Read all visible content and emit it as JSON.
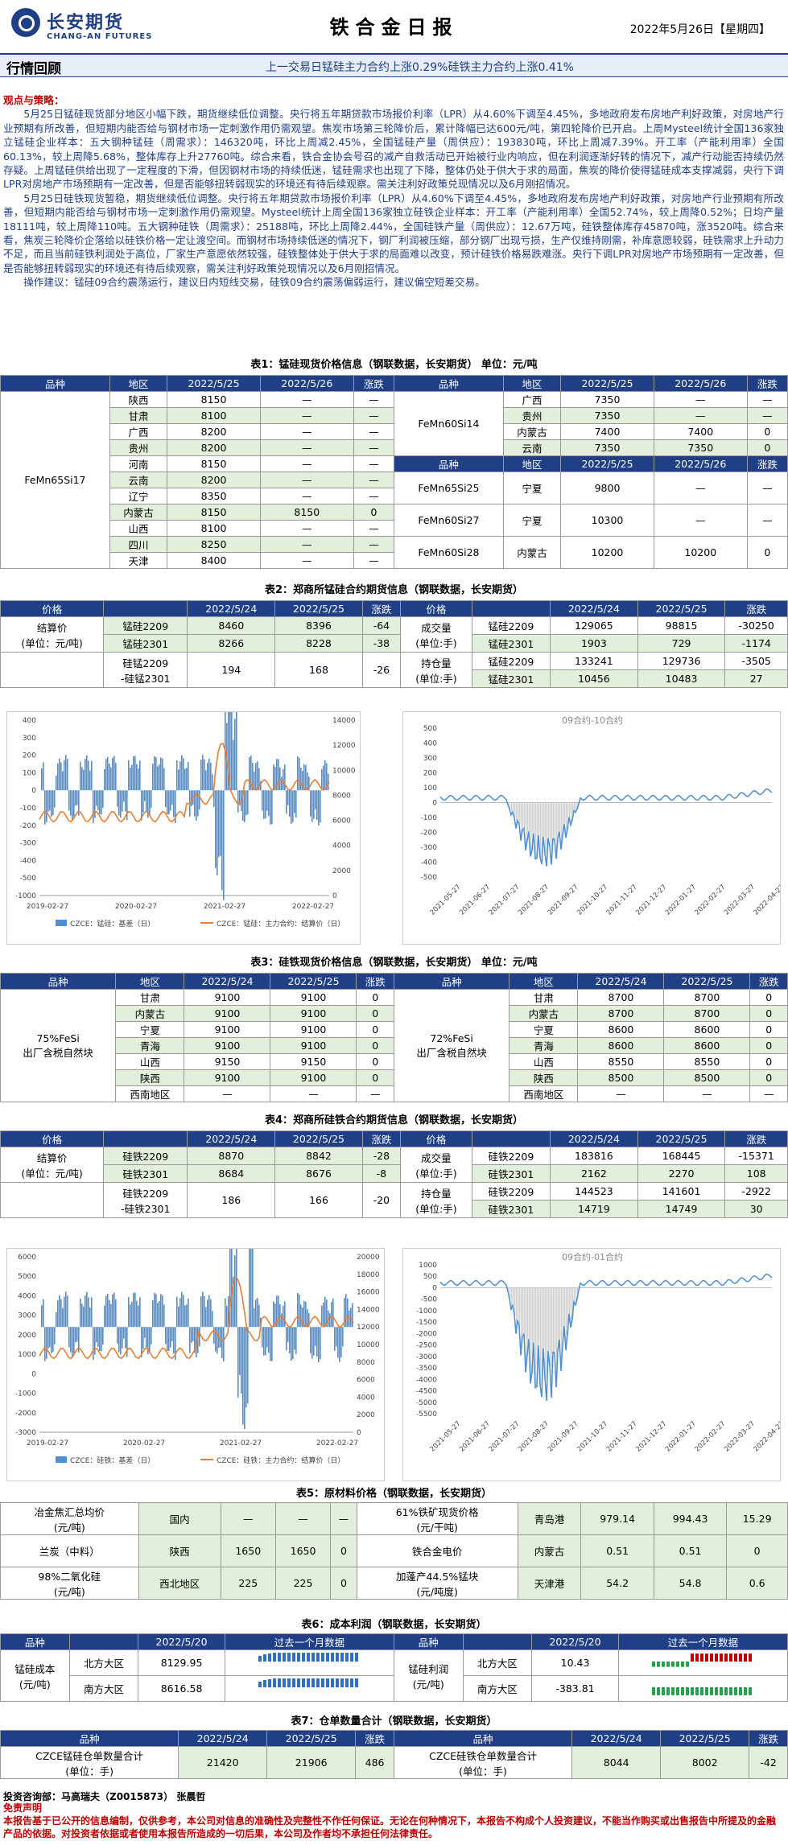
{
  "header": {
    "brand": "长安期货",
    "brand_en": "CHANG-AN FUTURES",
    "title": "铁合金日报",
    "date": "2022年5月26日【星期四】"
  },
  "band": {
    "label": "行情回顾",
    "summary": "上一交易日锰硅主力合约上涨0.29%硅铁主力合约上涨0.41%"
  },
  "views": {
    "heading": "观点与策略：",
    "p1": "5月25日锰硅现货部分地区小幅下跌，期货继续低位调整。央行将五年期贷款市场报价利率（LPR）从4.60%下调至4.45%，多地政府发布房地产利好政策，对房地产行业预期有所改善，但短期内能否给与钢材市场一定刺激作用仍需观望。焦炭市场第三轮降价后，累计降幅已达600元/吨，第四轮降价已开启。上周Mysteel统计全国136家独立锰硅企业样本：五大钢种锰硅（周需求）：146320吨，环比上周减2.45%，全国锰硅产量（周供应）：193830吨，环比上周减7.39%。开工率（产能利用率）全国60.13%，较上周降5.68%，整体库存上升27760吨。综合来看，铁合金协会号召的减产自救活动已开始被行业内响应，但在利润逐渐好转的情况下，减产行动能否持续仍然存疑。上周锰硅供给出现了一定程度的下滑，但因钢材市场的持续低迷，锰硅需求也出现了下降，整体仍处于供大于求的局面，焦炭的降价使得锰硅成本支撑减弱，央行下调LPR对房地产市场预期有一定改善，但是否能够扭转弱现实的环境还有待后续观察。需关注利好政策兑现情况以及6月刚招情况。",
    "p2": "5月25日硅铁现货暂稳，期货继续低位调整。央行将五年期贷款市场报价利率（LPR）从4.60%下调至4.45%，多地政府发布房地产利好政策，对房地产行业预期有所改善，但短期内能否给与钢材市场一定刺激作用仍需观望。Mysteel统计上周全国136家独立硅铁企业样本：开工率（产能利用率）全国52.74%，较上周降0.52%；日均产量18111吨，较上周降110吨。五大钢种硅铁（周需求）：25188吨，环比上周降2.44%，全国硅铁产量（周供应）：12.67万吨，硅铁整体库存45870吨，涨3520吨。综合来看，焦炭三轮降价企落给以硅铁价格一定让渡空间。而钢材市场持续低迷的情况下，钢厂利润被压缩，部分钢厂出现亏损，生产仅维持刚需，补库意愿较弱，硅铁需求上升动力不足，而且当前硅铁利润处于高位，厂家生产意愿依然较强，硅铁整体处于供大于求的局面难以改变，预计硅铁价格易跌难涨。央行下调LPR对房地产市场预期有一定改善，但是否能够扭转弱现实的环境还有待后续观察，需关注利好政策兑现情况以及6月刚招情况。",
    "p3": "操作建议：锰硅09合约震荡运行，建议日内短线交易，硅铁09合约震荡偏弱运行，建议偏空短差交易。"
  },
  "t1": {
    "title": "表1：锰硅现货价格信息（钢联数据，长安期货） 单位：元/吨",
    "headers": [
      "品种",
      "地区",
      "2022/5/25",
      "2022/5/26",
      "涨跌",
      "品种",
      "地区",
      "2022/5/25",
      "2022/5/26",
      "涨跌"
    ],
    "left_name": "FeMn65Si17",
    "left_rows": [
      [
        "陕西",
        "8150",
        "—",
        "—"
      ],
      [
        "甘肃",
        "8100",
        "—",
        "—"
      ],
      [
        "广西",
        "8200",
        "—",
        "—"
      ],
      [
        "贵州",
        "8200",
        "—",
        "—"
      ],
      [
        "河南",
        "8150",
        "—",
        "—"
      ],
      [
        "云南",
        "8200",
        "—",
        "—"
      ],
      [
        "辽宁",
        "8350",
        "—",
        "—"
      ],
      [
        "内蒙古",
        "8150",
        "8150",
        "0"
      ],
      [
        "山西",
        "8100",
        "—",
        "—"
      ],
      [
        "四川",
        "8250",
        "—",
        "—"
      ],
      [
        "天津",
        "8400",
        "—",
        "—"
      ]
    ],
    "r_name1": "FeMn60Si14",
    "r_rows1": [
      [
        "广西",
        "7350",
        "—",
        "—"
      ],
      [
        "贵州",
        "7350",
        "—",
        "—"
      ],
      [
        "内蒙古",
        "7400",
        "7400",
        "0"
      ],
      [
        "云南",
        "7350",
        "7350",
        "0"
      ]
    ],
    "r_rows2": [
      [
        "FeMn65Si25",
        "宁夏",
        "9800",
        "—",
        "—"
      ],
      [
        "FeMn60Si27",
        "宁夏",
        "10300",
        "—",
        "—"
      ],
      [
        "FeMn60Si28",
        "内蒙古",
        "10200",
        "10200",
        "0"
      ]
    ]
  },
  "t2": {
    "title": "表2：郑商所锰硅合约期货信息（钢联数据，长安期货）",
    "headers": [
      "价格",
      "",
      "2022/5/24",
      "2022/5/25",
      "涨跌",
      "价格",
      "",
      "2022/5/24",
      "2022/5/25",
      "涨跌"
    ],
    "left_label": "结算价",
    "left_unit": "(单位：元/吨)",
    "left_rows": [
      [
        "锰硅2209",
        "8460",
        "8396",
        "-64"
      ],
      [
        "锰硅2301",
        "8266",
        "8228",
        "-38"
      ],
      [
        "硅锰2209",
        "194",
        "168",
        "-26"
      ]
    ],
    "spread_l2": "-硅锰2301",
    "r1_label": "成交量",
    "r2_label": "持仓量",
    "r_unit": "(单位:手)",
    "right_rows": [
      [
        "锰硅2209",
        "129065",
        "98815",
        "-30250"
      ],
      [
        "锰硅2301",
        "1903",
        "729",
        "-1174"
      ],
      [
        "锰硅2209",
        "133241",
        "129736",
        "-3505"
      ],
      [
        "锰硅2301",
        "10456",
        "10483",
        "27"
      ]
    ]
  },
  "c1": {
    "legend1": "CZCE：锰硅：基差（日）",
    "legend2": "CZCE：锰硅：主力合约：结算价（日）",
    "xt": [
      "2019-02-27",
      "2020-02-27",
      "2021-02-27",
      "2022-02-27"
    ],
    "yl": [
      "400",
      "300",
      "200",
      "100",
      "0",
      "-100",
      "-200",
      "-300",
      "-400",
      "-500",
      "-1000"
    ],
    "yr": [
      "14000",
      "12000",
      "10000",
      "8000",
      "6000",
      "4000",
      "2000",
      "0"
    ]
  },
  "c2": {
    "title": "09合约-10合约",
    "yl": [
      "500",
      "400",
      "300",
      "200",
      "100",
      "0",
      "-100",
      "-200",
      "-300",
      "-400",
      "-500"
    ],
    "xt": [
      "2021-05-27",
      "2021-06-27",
      "2021-07-27",
      "2021-08-27",
      "2021-09-27",
      "2021-10-27",
      "2021-11-27",
      "2021-12-27",
      "2022-01-27",
      "2022-02-27",
      "2022-03-27",
      "2022-04-27"
    ]
  },
  "t3": {
    "title": "表3：硅铁现货价格信息（钢联数据，长安期货） 单位：元/吨",
    "headers": [
      "品种",
      "地区",
      "2022/5/24",
      "2022/5/25",
      "涨跌",
      "品种",
      "地区",
      "2022/5/24",
      "2022/5/25",
      "涨跌"
    ],
    "left_name": "75%FeSi",
    "left_sub": "出厂含税自然块",
    "right_name": "72%FeSi",
    "right_sub": "出厂含税自然块",
    "left_rows": [
      [
        "甘肃",
        "9100",
        "9100",
        "0"
      ],
      [
        "内蒙古",
        "9100",
        "9100",
        "0"
      ],
      [
        "宁夏",
        "9100",
        "9100",
        "0"
      ],
      [
        "青海",
        "9100",
        "9100",
        "0"
      ],
      [
        "山西",
        "9150",
        "9150",
        "0"
      ],
      [
        "陕西",
        "9100",
        "9100",
        "0"
      ],
      [
        "西南地区",
        "—",
        "—",
        "—"
      ]
    ],
    "right_rows": [
      [
        "甘肃",
        "8700",
        "8700",
        "0"
      ],
      [
        "内蒙古",
        "8700",
        "8700",
        "0"
      ],
      [
        "宁夏",
        "8600",
        "8600",
        "0"
      ],
      [
        "青海",
        "8600",
        "8600",
        "0"
      ],
      [
        "山西",
        "8550",
        "8550",
        "0"
      ],
      [
        "陕西",
        "8500",
        "8500",
        "0"
      ],
      [
        "西南地区",
        "—",
        "—",
        "—"
      ]
    ]
  },
  "t4": {
    "title": "表4：郑商所硅铁合约期货信息（钢联数据，长安期货）",
    "headers": [
      "价格",
      "",
      "2022/5/24",
      "2022/5/25",
      "涨跌",
      "价格",
      "",
      "2022/5/24",
      "2022/5/25",
      "涨跌"
    ],
    "left_label": "结算价",
    "left_unit": "(单位：元/吨)",
    "left_rows": [
      [
        "硅铁2209",
        "8870",
        "8842",
        "-28"
      ],
      [
        "硅铁2301",
        "8684",
        "8676",
        "-8"
      ],
      [
        "硅铁2209",
        "186",
        "166",
        "-20"
      ]
    ],
    "spread_l2": "-硅铁2301",
    "r1_label": "成交量",
    "r2_label": "持仓量",
    "r_unit": "(单位:手)",
    "right_rows": [
      [
        "硅铁2209",
        "183816",
        "168445",
        "-15371"
      ],
      [
        "硅铁2301",
        "2162",
        "2270",
        "108"
      ],
      [
        "硅铁2209",
        "144523",
        "141601",
        "-2922"
      ],
      [
        "硅铁2301",
        "14719",
        "14749",
        "30"
      ]
    ]
  },
  "c3": {
    "legend1": "CZCE：硅铁：基差（日）",
    "legend2": "CZCE：硅铁：主力合约：结算价（日）",
    "xt": [
      "2019-02-27",
      "2020-02-27",
      "2021-02-27",
      "2022-02-27"
    ],
    "yl": [
      "6000",
      "5000",
      "4000",
      "3000",
      "2000",
      "1000",
      "0",
      "-1000",
      "-2000",
      "-3000"
    ],
    "yr": [
      "20000",
      "18000",
      "16000",
      "14000",
      "12000",
      "10000",
      "8000",
      "6000",
      "4000",
      "2000",
      "0"
    ]
  },
  "c4": {
    "title": "09合约-01合约",
    "yl": [
      "1000",
      "500",
      "0",
      "-500",
      "-1000",
      "-1500",
      "-2000",
      "-2500",
      "-3000",
      "-3500",
      "-4000",
      "-4500",
      "-5000",
      "-5500"
    ],
    "xt": [
      "2021-05-27",
      "2021-06-27",
      "2021-07-27",
      "2021-08-27",
      "2021-09-27",
      "2021-10-27",
      "2021-11-27",
      "2021-12-27",
      "2022-01-27",
      "2022-02-27",
      "2022-03-27",
      "2022-04-27"
    ]
  },
  "t5": {
    "title": "表5：原材料价格（钢联数据，长安期货）",
    "rows": [
      [
        "冶金焦汇总均价",
        "(元/吨)",
        "国内",
        "—",
        "—",
        "—",
        "61%铁矿现货价格",
        "(元/干吨)",
        "青岛港",
        "979.14",
        "994.43",
        "15.29"
      ],
      [
        "兰炭（中料）",
        "",
        "陕西",
        "1650",
        "1650",
        "0",
        "铁合金电价",
        "",
        "内蒙古",
        "0.51",
        "0.51",
        "0"
      ],
      [
        "98%二氧化硅",
        "(元/吨)",
        "西北地区",
        "225",
        "225",
        "0",
        "加蓬产44.5%锰块",
        "(元/吨度)",
        "天津港",
        "54.2",
        "54.8",
        "0.6"
      ]
    ]
  },
  "t6": {
    "title": "表6：成本利润（钢联数据，长安期货）",
    "headers": [
      "品种",
      "",
      "2022/5/20",
      "过去一个月数据",
      "品种",
      "",
      "2022/5/20",
      "过去一个月数据"
    ],
    "l_name": "锰硅成本",
    "l_unit": "(元/吨)",
    "r_name": "锰硅利润",
    "r_unit": "(元/吨)",
    "rows": [
      [
        "北方大区",
        "8129.95",
        "北方大区",
        "10.43"
      ],
      [
        "南方大区",
        "8616.58",
        "南方大区",
        "-383.81"
      ]
    ]
  },
  "t7": {
    "title": "表7：仓单数量合计（钢联数据，长安期货）",
    "headers": [
      "品种",
      "2022/5/24",
      "2022/5/25",
      "涨跌",
      "品种",
      "2022/5/24",
      "2022/5/25",
      "涨跌"
    ],
    "row": [
      "CZCE锰硅仓单数量合计",
      "(单位：手)",
      "21420",
      "21906",
      "486",
      "CZCE硅铁仓单数量合计",
      "(单位：手)",
      "8044",
      "8002",
      "-42"
    ]
  },
  "foot": {
    "inv": "投资咨询部：马高瑞夫（Z0015873） 张晨哲",
    "disc_h": "免责声明",
    "disc": "本报告基于已公开的信息编制，仅供参考，本公司对信息的准确性及完整性不作任何保证。无论在何种情况下，本报告不构成个人投资建议，不能当作购买或出售报告中所提及的金融产品的依据。对投资者依据或者使用本报告所造成的一切后果，本公司及作者均不承担任何法律责任。"
  }
}
